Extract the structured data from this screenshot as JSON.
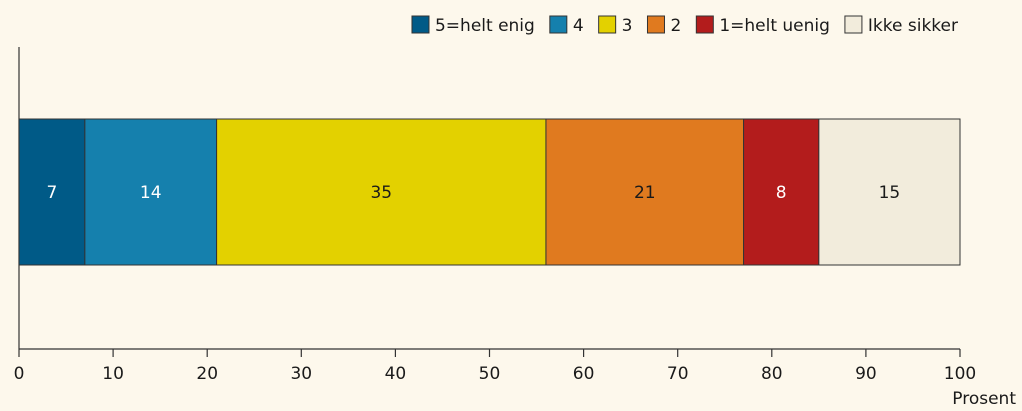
{
  "chart_data": {
    "type": "bar",
    "orientation": "horizontal",
    "stacked": true,
    "categories": [
      ""
    ],
    "series": [
      {
        "name": "5=helt enig",
        "values": [
          7
        ],
        "color": "#005a87",
        "label_color": "#ffffff"
      },
      {
        "name": "4",
        "values": [
          14
        ],
        "color": "#1580ad",
        "label_color": "#ffffff"
      },
      {
        "name": "3",
        "values": [
          35
        ],
        "color": "#e3d100",
        "label_color": "#1a1a1a"
      },
      {
        "name": "2",
        "values": [
          21
        ],
        "color": "#e07a1f",
        "label_color": "#1a1a1a"
      },
      {
        "name": "1=helt uenig",
        "values": [
          8
        ],
        "color": "#b31c1c",
        "label_color": "#ffffff"
      },
      {
        "name": "Ikke sikker",
        "values": [
          15
        ],
        "color": "#f2ecdc",
        "label_color": "#1a1a1a"
      }
    ],
    "xlim": [
      0,
      100
    ],
    "xticks": [
      0,
      10,
      20,
      30,
      40,
      50,
      60,
      70,
      80,
      90,
      100
    ],
    "xlabel": "Prosent",
    "legend_position": "top-right",
    "grid": false,
    "background": "#fdf8ec"
  }
}
